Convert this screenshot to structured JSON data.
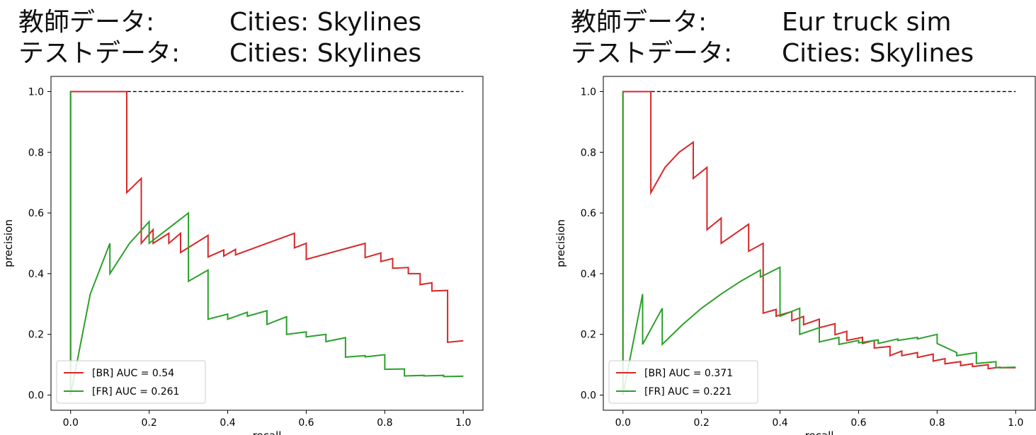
{
  "panels": [
    {
      "header": {
        "train_label": "教師データ:",
        "train_value": "Cities: Skylines",
        "test_label": "テストデータ:",
        "test_value": "Cities: Skylines"
      }
    },
    {
      "header": {
        "train_label": "教師データ:",
        "train_value": "Eur truck sim",
        "test_label": "テストデータ:",
        "test_value": "Cities: Skylines"
      }
    }
  ],
  "chart_data": [
    {
      "type": "line",
      "xlabel": "recall",
      "ylabel": "precision",
      "xlim": [
        -0.05,
        1.05
      ],
      "ylim": [
        -0.05,
        1.05
      ],
      "xticks": [
        "0.0",
        "0.2",
        "0.4",
        "0.6",
        "0.8",
        "1.0"
      ],
      "yticks": [
        "0.0",
        "0.2",
        "0.4",
        "0.6",
        "0.8",
        "1.0"
      ],
      "legend_position": "lower-left",
      "colors": {
        "BR": "#d62728",
        "FR": "#2ca02c",
        "reference": "#000000"
      },
      "reference_line": {
        "y": 1.0,
        "x": [
          0.0,
          1.0
        ],
        "style": "dashed"
      },
      "series": [
        {
          "name": "[BR] AUC = 0.54",
          "x": [
            0.0,
            0.0,
            0.143,
            0.143,
            0.18,
            0.18,
            0.21,
            0.21,
            0.25,
            0.25,
            0.28,
            0.28,
            0.35,
            0.35,
            0.39,
            0.39,
            0.42,
            0.42,
            0.57,
            0.57,
            0.6,
            0.6,
            0.75,
            0.75,
            0.79,
            0.79,
            0.82,
            0.82,
            0.86,
            0.86,
            0.89,
            0.89,
            0.92,
            0.92,
            0.96,
            0.96,
            1.0
          ],
          "y": [
            0.0,
            1.0,
            1.0,
            0.667,
            0.714,
            0.5,
            0.545,
            0.5,
            0.533,
            0.5,
            0.533,
            0.47,
            0.526,
            0.455,
            0.478,
            0.458,
            0.48,
            0.462,
            0.533,
            0.485,
            0.5,
            0.447,
            0.5,
            0.453,
            0.468,
            0.44,
            0.45,
            0.418,
            0.42,
            0.4,
            0.4,
            0.364,
            0.37,
            0.343,
            0.345,
            0.174,
            0.179
          ]
        },
        {
          "name": "[FR] AUC = 0.261",
          "x": [
            0.0,
            0.0,
            0.0,
            0.05,
            0.1,
            0.1,
            0.15,
            0.2,
            0.2,
            0.3,
            0.3,
            0.35,
            0.35,
            0.4,
            0.4,
            0.45,
            0.45,
            0.5,
            0.5,
            0.55,
            0.55,
            0.6,
            0.6,
            0.65,
            0.65,
            0.7,
            0.7,
            0.75,
            0.75,
            0.8,
            0.8,
            0.85,
            0.85,
            0.9,
            0.9,
            0.95,
            0.95,
            1.0
          ],
          "y": [
            0.0,
            1.0,
            0.0,
            0.333,
            0.5,
            0.4,
            0.5,
            0.571,
            0.5,
            0.6,
            0.375,
            0.412,
            0.25,
            0.267,
            0.25,
            0.273,
            0.26,
            0.278,
            0.233,
            0.258,
            0.2,
            0.208,
            0.192,
            0.2,
            0.176,
            0.189,
            0.125,
            0.13,
            0.126,
            0.133,
            0.085,
            0.086,
            0.063,
            0.065,
            0.063,
            0.065,
            0.061,
            0.062
          ]
        }
      ]
    },
    {
      "type": "line",
      "xlabel": "recall",
      "ylabel": "precision",
      "xlim": [
        -0.05,
        1.05
      ],
      "ylim": [
        -0.05,
        1.05
      ],
      "xticks": [
        "0.0",
        "0.2",
        "0.4",
        "0.6",
        "0.8",
        "1.0"
      ],
      "yticks": [
        "0.0",
        "0.2",
        "0.4",
        "0.6",
        "0.8",
        "1.0"
      ],
      "legend_position": "lower-left",
      "colors": {
        "BR": "#d62728",
        "FR": "#2ca02c",
        "reference": "#000000"
      },
      "reference_line": {
        "y": 1.0,
        "x": [
          0.0,
          1.0
        ],
        "style": "dashed"
      },
      "series": [
        {
          "name": "[BR] AUC = 0.371",
          "x": [
            0.0,
            0.0,
            0.071,
            0.071,
            0.107,
            0.143,
            0.179,
            0.179,
            0.214,
            0.214,
            0.25,
            0.25,
            0.32,
            0.32,
            0.357,
            0.357,
            0.39,
            0.39,
            0.43,
            0.43,
            0.46,
            0.46,
            0.5,
            0.5,
            0.54,
            0.54,
            0.57,
            0.57,
            0.61,
            0.61,
            0.64,
            0.64,
            0.68,
            0.68,
            0.71,
            0.71,
            0.75,
            0.75,
            0.79,
            0.79,
            0.82,
            0.82,
            0.86,
            0.86,
            0.89,
            0.89,
            0.93,
            0.93,
            0.96,
            0.96,
            1.0
          ],
          "y": [
            0.0,
            1.0,
            1.0,
            0.667,
            0.75,
            0.8,
            0.833,
            0.714,
            0.75,
            0.545,
            0.583,
            0.5,
            0.563,
            0.474,
            0.5,
            0.27,
            0.282,
            0.26,
            0.275,
            0.245,
            0.259,
            0.232,
            0.25,
            0.222,
            0.235,
            0.199,
            0.21,
            0.18,
            0.19,
            0.17,
            0.18,
            0.155,
            0.16,
            0.13,
            0.145,
            0.13,
            0.14,
            0.124,
            0.135,
            0.112,
            0.12,
            0.103,
            0.11,
            0.097,
            0.103,
            0.094,
            0.1,
            0.087,
            0.092,
            0.09,
            0.09
          ]
        },
        {
          "name": "[FR] AUC = 0.221",
          "x": [
            0.0,
            0.0,
            0.0,
            0.05,
            0.05,
            0.1,
            0.1,
            0.15,
            0.2,
            0.25,
            0.3,
            0.35,
            0.35,
            0.4,
            0.4,
            0.45,
            0.45,
            0.5,
            0.5,
            0.55,
            0.55,
            0.6,
            0.6,
            0.65,
            0.65,
            0.7,
            0.7,
            0.75,
            0.75,
            0.8,
            0.8,
            0.85,
            0.85,
            0.9,
            0.9,
            0.95,
            0.95,
            1.0
          ],
          "y": [
            0.0,
            1.0,
            0.0,
            0.333,
            0.167,
            0.286,
            0.167,
            0.23,
            0.286,
            0.333,
            0.375,
            0.412,
            0.389,
            0.421,
            0.26,
            0.286,
            0.2,
            0.222,
            0.175,
            0.19,
            0.167,
            0.18,
            0.172,
            0.182,
            0.17,
            0.185,
            0.18,
            0.19,
            0.185,
            0.2,
            0.17,
            0.14,
            0.13,
            0.14,
            0.104,
            0.11,
            0.09,
            0.092
          ]
        }
      ]
    }
  ]
}
